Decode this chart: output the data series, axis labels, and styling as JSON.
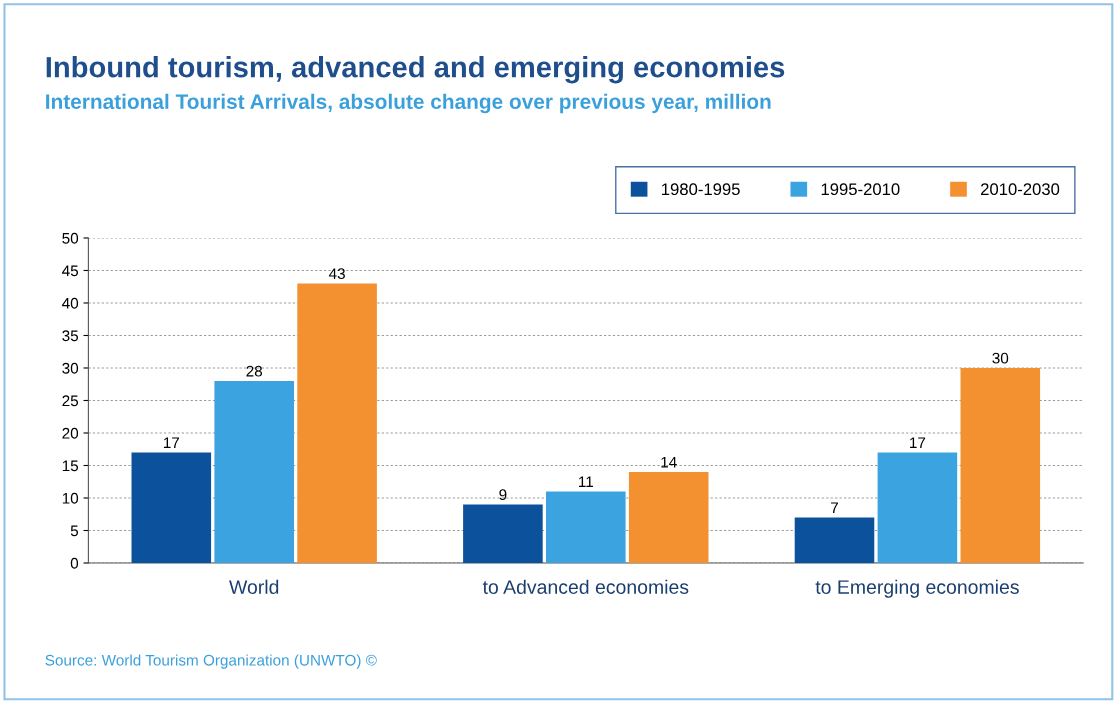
{
  "chart_data": {
    "type": "bar",
    "title": "Inbound tourism, advanced and emerging economies",
    "subtitle": "International Tourist Arrivals, absolute change over previous year, million",
    "categories": [
      "World",
      "to Advanced economies",
      "to Emerging economies"
    ],
    "series": [
      {
        "name": "1980-1995",
        "color": "#0b519c",
        "values": [
          17,
          9,
          7
        ]
      },
      {
        "name": "1995-2010",
        "color": "#3aa3e0",
        "values": [
          28,
          11,
          17
        ]
      },
      {
        "name": "2010-2030",
        "color": "#f39131",
        "values": [
          43,
          14,
          30
        ]
      }
    ],
    "ylim": [
      0,
      50
    ],
    "yticks": [
      0,
      5,
      10,
      15,
      20,
      25,
      30,
      35,
      40,
      45,
      50
    ],
    "grid": "y",
    "legend": "top right",
    "data_labels": true,
    "annotations": [
      "Source: World Tourism Organization (UNWTO) ©"
    ]
  }
}
